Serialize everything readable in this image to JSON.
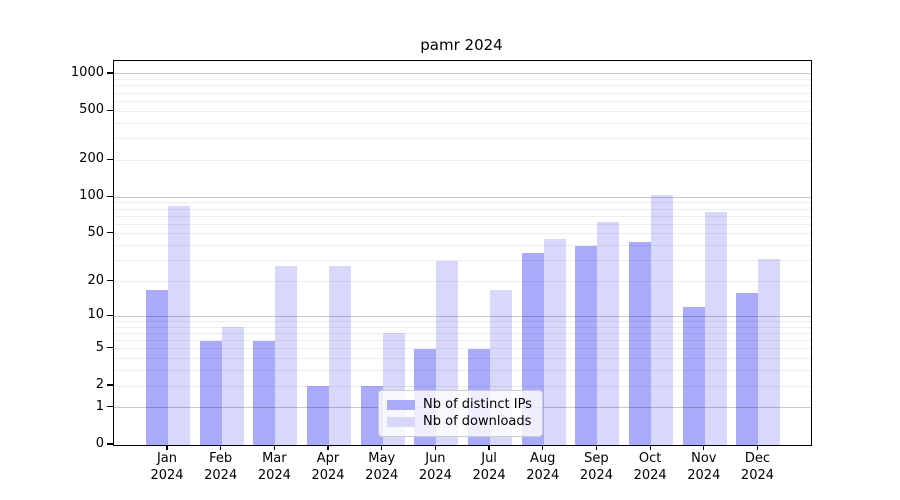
{
  "title": "pamr 2024",
  "chart_data": {
    "type": "bar",
    "title": "pamr 2024",
    "categories": [
      "Jan",
      "Feb",
      "Mar",
      "Apr",
      "May",
      "Jun",
      "Jul",
      "Aug",
      "Sep",
      "Oct",
      "Nov",
      "Dec"
    ],
    "year": "2024",
    "series": [
      {
        "key": "distinct-ips",
        "name": "Nb of distinct IPs",
        "color": "#a9aaf9",
        "values": [
          17,
          6,
          6,
          2,
          2,
          5,
          5,
          35,
          40,
          43,
          12,
          16
        ]
      },
      {
        "key": "downloads",
        "name": "Nb of downloads",
        "color": "#d8d9fa",
        "values": [
          85,
          8,
          27,
          27,
          7,
          30,
          17,
          45,
          63,
          104,
          76,
          31
        ]
      }
    ],
    "xlabel": "",
    "ylabel": "",
    "yscale": "log1p",
    "ylim": [
      0,
      1300
    ],
    "yticks": [
      0,
      1,
      2,
      5,
      10,
      20,
      50,
      100,
      200,
      500,
      1000
    ],
    "gridlines": {
      "major": [
        1,
        10,
        100,
        1000
      ],
      "minor": [
        2,
        3,
        4,
        5,
        6,
        7,
        8,
        9,
        20,
        30,
        40,
        50,
        60,
        70,
        80,
        90,
        200,
        300,
        400,
        500,
        600,
        700,
        800,
        900
      ]
    },
    "grid": true,
    "legend_position": "lower center"
  },
  "legend": {
    "items": [
      {
        "label": "Nb of distinct IPs"
      },
      {
        "label": "Nb of downloads"
      }
    ]
  },
  "colors": {
    "major_grid": "#c9c9c9",
    "minor_grid": "#ededed",
    "spine": "#000000",
    "text": "#000000",
    "legend_border": "#cccccc"
  }
}
